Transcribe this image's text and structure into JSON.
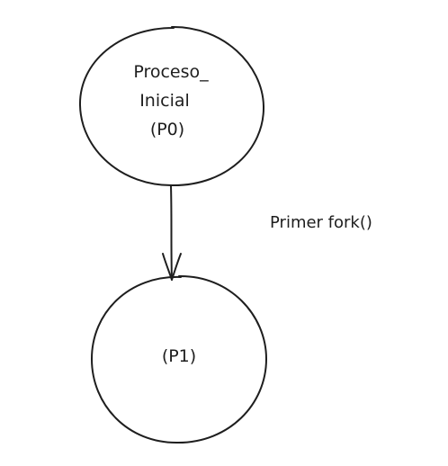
{
  "diagram": {
    "nodes": [
      {
        "id": "p0",
        "lines": [
          "Proceso_",
          "Inicial",
          "(P0)"
        ]
      },
      {
        "id": "p1",
        "lines": [
          "(P1)"
        ]
      }
    ],
    "edge": {
      "from": "p0",
      "to": "p1",
      "label": "Primer fork()"
    }
  },
  "colors": {
    "stroke": "#1e1e1e",
    "background": "#ffffff"
  }
}
